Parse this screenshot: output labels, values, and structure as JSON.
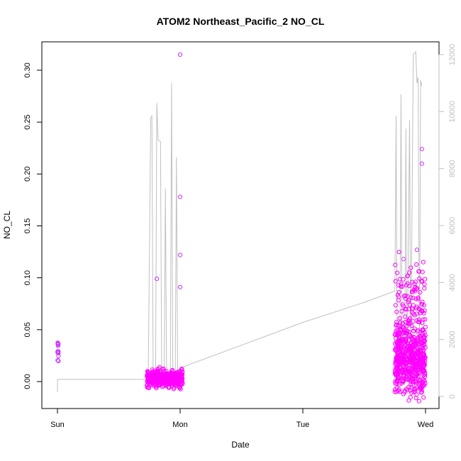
{
  "chart_data": {
    "type": "scatter",
    "title": "ATOM2 Northeast_Pacific_2 NO_CL",
    "xlabel": "Date",
    "ylabel": "NO_CL",
    "x_ticks": [
      "Sun",
      "Mon",
      "Tue",
      "Wed"
    ],
    "x_range_days": [
      0,
      3
    ],
    "y_left": {
      "range": [
        -0.025,
        0.33
      ],
      "ticks": [
        "0.00",
        "0.05",
        "0.10",
        "0.15",
        "0.20",
        "0.25",
        "0.30"
      ],
      "tick_values": [
        0,
        0.05,
        0.1,
        0.15,
        0.2,
        0.25,
        0.3
      ]
    },
    "y_right": {
      "range": [
        -350,
        12350
      ],
      "ticks": [
        "0",
        "2000",
        "4000",
        "6000",
        "8000",
        "10000",
        "12000"
      ],
      "tick_values": [
        0,
        2000,
        4000,
        6000,
        8000,
        10000,
        12000
      ]
    },
    "colors": {
      "points": "#ff00ff",
      "early_points": "#cc33ff",
      "line": "#c0c0c0",
      "right_axis": "#bfbfbf"
    },
    "series": [
      {
        "kind": "points",
        "axis": "left",
        "clusters": [
          {
            "day_start": 0.0,
            "day_end": 0.01,
            "center": 0.03,
            "spread": 0.012,
            "count": 14
          },
          {
            "day_start": 0.73,
            "day_end": 1.02,
            "center": 0.003,
            "spread": 0.008,
            "count": 420
          },
          {
            "day_start": 2.75,
            "day_end": 3.0,
            "center": 0.02,
            "spread": 0.03,
            "count": 650
          }
        ],
        "outliers": [
          {
            "day": 1.0,
            "value": 0.315
          },
          {
            "day": 1.0,
            "value": 0.178
          },
          {
            "day": 1.0,
            "value": 0.122
          },
          {
            "day": 1.0,
            "value": 0.091
          },
          {
            "day": 0.81,
            "value": 0.099
          },
          {
            "day": 2.97,
            "value": 0.224
          },
          {
            "day": 2.97,
            "value": 0.21
          },
          {
            "day": 2.93,
            "value": 0.127
          },
          {
            "day": 2.82,
            "value": 0.118
          }
        ]
      },
      {
        "kind": "line",
        "axis": "right",
        "points": [
          [
            0.0,
            150
          ],
          [
            0.0,
            600
          ],
          [
            0.74,
            600
          ],
          [
            0.76,
            9800
          ],
          [
            0.77,
            9850
          ],
          [
            0.78,
            900
          ],
          [
            0.8,
            900
          ],
          [
            0.81,
            10300
          ],
          [
            0.82,
            9000
          ],
          [
            0.84,
            8950
          ],
          [
            0.85,
            700
          ],
          [
            0.87,
            600
          ],
          [
            0.88,
            7300
          ],
          [
            0.89,
            500
          ],
          [
            0.9,
            700
          ],
          [
            0.92,
            700
          ],
          [
            0.93,
            11000
          ],
          [
            0.94,
            900
          ],
          [
            0.95,
            600
          ],
          [
            0.96,
            600
          ],
          [
            0.97,
            8400
          ],
          [
            0.98,
            700
          ],
          [
            1.0,
            1000
          ],
          [
            1.5,
            1800
          ],
          [
            2.0,
            2600
          ],
          [
            2.5,
            3300
          ],
          [
            2.75,
            3700
          ],
          [
            2.76,
            9850
          ],
          [
            2.77,
            500
          ],
          [
            2.79,
            800
          ],
          [
            2.8,
            10600
          ],
          [
            2.81,
            700
          ],
          [
            2.83,
            400
          ],
          [
            2.84,
            9400
          ],
          [
            2.85,
            500
          ],
          [
            2.87,
            9700
          ],
          [
            2.88,
            800
          ],
          [
            2.9,
            12000
          ],
          [
            2.92,
            12100
          ],
          [
            2.93,
            11000
          ],
          [
            2.94,
            11200
          ],
          [
            2.95,
            800
          ],
          [
            2.96,
            11100
          ],
          [
            2.97,
            10900
          ]
        ]
      }
    ]
  }
}
